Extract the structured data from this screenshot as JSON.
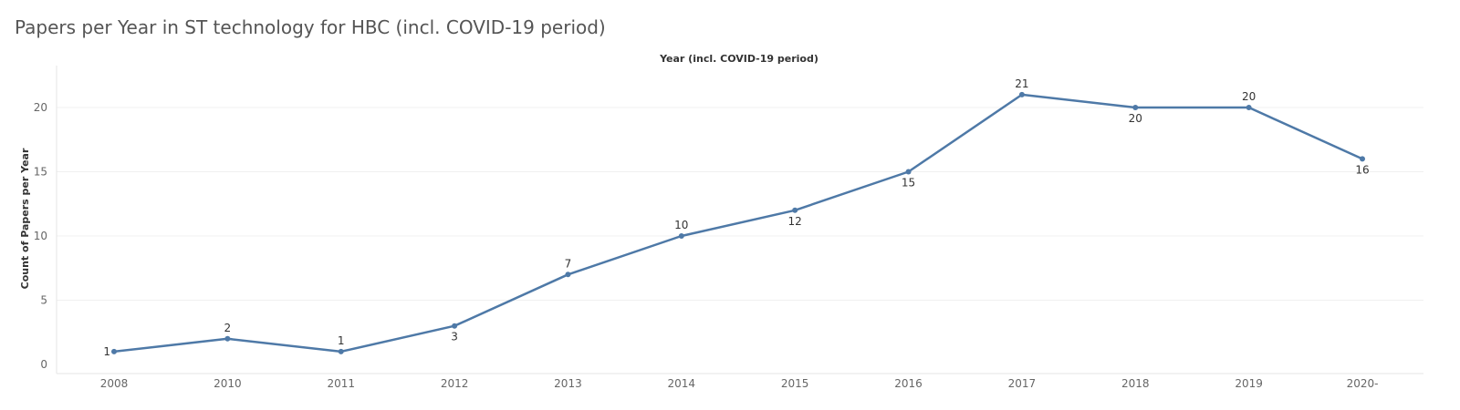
{
  "title": "Papers per Year in ST technology for HBC (incl. COVID-19 period)",
  "chart_data": {
    "type": "line",
    "title": "Papers per Year in ST technology for HBC (incl. COVID-19 period)",
    "xlabel": "Year (incl. COVID-19 period)",
    "ylabel": "Count of Papers per Year",
    "categories": [
      "2008",
      "2010",
      "2011",
      "2012",
      "2013",
      "2014",
      "2015",
      "2016",
      "2017",
      "2018",
      "2019",
      "2020-"
    ],
    "series": [
      {
        "values": [
          1,
          2,
          1,
          3,
          7,
          10,
          12,
          15,
          21,
          20,
          20,
          16
        ]
      }
    ],
    "label_positions": [
      "left",
      "above",
      "above",
      "below",
      "above",
      "above",
      "below",
      "below",
      "above",
      "below",
      "above",
      "below"
    ],
    "yticks": [
      0,
      5,
      10,
      15,
      20
    ],
    "ylim": [
      0,
      22
    ],
    "xaxis_position": "top",
    "grid": true,
    "line_color": "#4e79a7"
  }
}
